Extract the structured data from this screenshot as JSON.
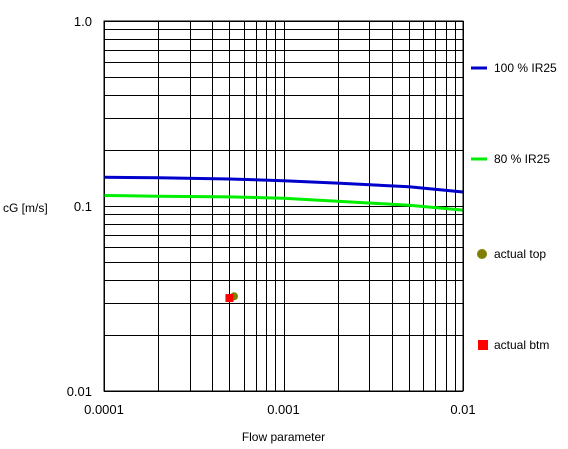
{
  "chart_data": {
    "type": "line",
    "title": "",
    "xlabel": "Flow parameter",
    "ylabel": "cG [m/s]",
    "xscale": "log",
    "yscale": "log",
    "xlim": [
      0.0001,
      0.01
    ],
    "ylim": [
      0.01,
      1.0
    ],
    "x_ticks": [
      "0.0001",
      "0.001",
      "0.01"
    ],
    "y_ticks": [
      "0.01",
      "0.1",
      "1.0"
    ],
    "grid": true,
    "legend_position": "right",
    "series": [
      {
        "name": "100 % IR25",
        "kind": "line",
        "color": "#0000cc",
        "x": [
          0.0001,
          0.0002,
          0.0005,
          0.001,
          0.002,
          0.005,
          0.01
        ],
        "y": [
          0.143,
          0.142,
          0.14,
          0.137,
          0.133,
          0.127,
          0.119
        ]
      },
      {
        "name": "80 % IR25",
        "kind": "line",
        "color": "#00ee00",
        "x": [
          0.0001,
          0.0002,
          0.0005,
          0.001,
          0.002,
          0.005,
          0.01
        ],
        "y": [
          0.114,
          0.113,
          0.112,
          0.11,
          0.106,
          0.101,
          0.095
        ]
      },
      {
        "name": "actual top",
        "kind": "point",
        "marker": "circle",
        "color": "#808000",
        "x": [
          0.00053
        ],
        "y": [
          0.0325
        ]
      },
      {
        "name": "actual btm",
        "kind": "point",
        "marker": "square",
        "color": "#ff0000",
        "x": [
          0.0005
        ],
        "y": [
          0.0318
        ]
      }
    ]
  }
}
